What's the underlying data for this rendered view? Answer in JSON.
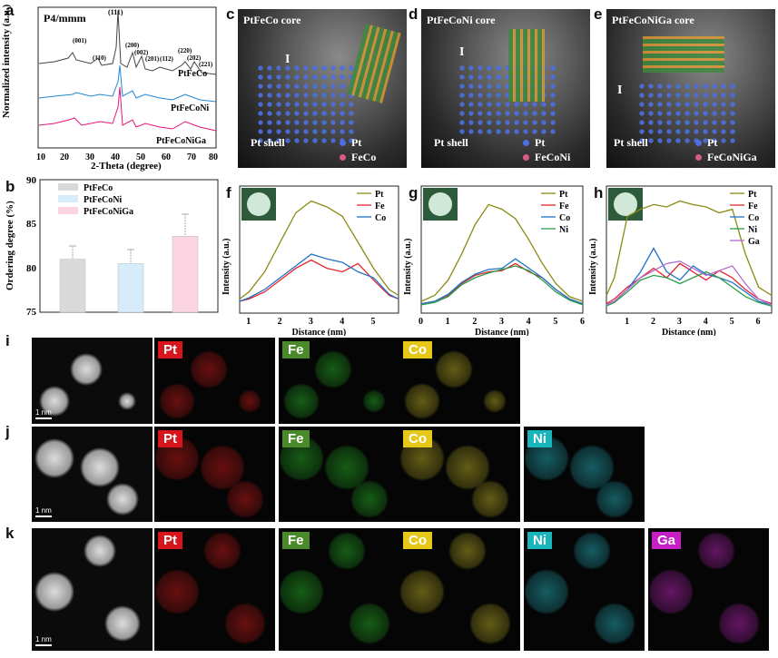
{
  "panel_letters": {
    "a": "a",
    "b": "b",
    "c": "c",
    "d": "d",
    "e": "e",
    "f": "f",
    "g": "g",
    "h": "h",
    "i": "i",
    "j": "j",
    "k": "k"
  },
  "xrd": {
    "space_group": "P4/mmm",
    "peaks": [
      "(001)",
      "(110)",
      "(111)",
      "(200)",
      "(002)",
      "(201)",
      "(112)",
      "(220)",
      "(202)",
      "(221)"
    ],
    "samples": [
      "PtFeCo",
      "PtFeCoNi",
      "PtFeCoNiGa"
    ],
    "xlabel": "2-Theta (degree)",
    "ylabel": "Normalized intensity (a.u.)",
    "x_ticks": [
      "10",
      "20",
      "30",
      "40",
      "50",
      "60",
      "70",
      "80"
    ]
  },
  "chart_data": [
    {
      "type": "bar",
      "title": "",
      "categories": [
        "PtFeCo",
        "PtFeCoNi",
        "PtFeCoNiGa"
      ],
      "values": [
        81.0,
        80.5,
        83.6
      ],
      "errors": [
        1.5,
        1.6,
        2.5
      ],
      "ylabel": "Ordering degree (%)",
      "ylim": [
        75,
        90
      ],
      "yticks": [
        "75",
        "80",
        "85",
        "90"
      ],
      "colors": [
        "#d9d9d9",
        "#d6ecfa",
        "#fbd5e1"
      ],
      "legend": "top-left"
    },
    {
      "type": "line",
      "title": "",
      "xlabel": "Distance (nm)",
      "ylabel": "Intensity (a.u.)",
      "xlim": [
        0.7,
        5.8
      ],
      "xticks": [
        "1",
        "2",
        "3",
        "4",
        "5"
      ],
      "series": [
        {
          "name": "Pt",
          "color": "#8b8a13",
          "x": [
            0.7,
            1.0,
            1.5,
            2.0,
            2.5,
            3.0,
            3.5,
            4.0,
            4.5,
            5.0,
            5.5,
            5.8
          ],
          "y": [
            0.12,
            0.18,
            0.35,
            0.6,
            0.85,
            0.95,
            0.9,
            0.82,
            0.6,
            0.38,
            0.2,
            0.15
          ]
        },
        {
          "name": "Fe",
          "color": "#e3262c",
          "x": [
            0.7,
            1.0,
            1.5,
            2.0,
            2.5,
            3.0,
            3.5,
            4.0,
            4.5,
            5.0,
            5.5,
            5.8
          ],
          "y": [
            0.1,
            0.12,
            0.18,
            0.28,
            0.38,
            0.45,
            0.38,
            0.35,
            0.42,
            0.28,
            0.15,
            0.12
          ]
        },
        {
          "name": "Co",
          "color": "#1f74c7",
          "x": [
            0.7,
            1.0,
            1.5,
            2.0,
            2.5,
            3.0,
            3.5,
            4.0,
            4.5,
            5.0,
            5.5,
            5.8
          ],
          "y": [
            0.1,
            0.13,
            0.2,
            0.3,
            0.4,
            0.5,
            0.46,
            0.43,
            0.35,
            0.3,
            0.16,
            0.12
          ]
        }
      ]
    },
    {
      "type": "line",
      "title": "",
      "xlabel": "Distance (nm)",
      "ylabel": "Intensity (a.u.)",
      "xlim": [
        0,
        6
      ],
      "xticks": [
        "0",
        "1",
        "2",
        "3",
        "4",
        "5",
        "6"
      ],
      "series": [
        {
          "name": "Pt",
          "color": "#8b8a13",
          "x": [
            0,
            0.5,
            1.0,
            1.5,
            2.0,
            2.5,
            3.0,
            3.5,
            4.0,
            4.5,
            5.0,
            5.5,
            6.0
          ],
          "y": [
            0.1,
            0.15,
            0.28,
            0.5,
            0.75,
            0.92,
            0.88,
            0.8,
            0.62,
            0.42,
            0.25,
            0.14,
            0.1
          ]
        },
        {
          "name": "Fe",
          "color": "#e3262c",
          "x": [
            0,
            0.5,
            1.0,
            1.5,
            2.0,
            2.5,
            3.0,
            3.5,
            4.0,
            4.5,
            5.0,
            5.5,
            6.0
          ],
          "y": [
            0.08,
            0.1,
            0.15,
            0.25,
            0.32,
            0.35,
            0.36,
            0.42,
            0.35,
            0.3,
            0.2,
            0.12,
            0.08
          ]
        },
        {
          "name": "Co",
          "color": "#1f74c7",
          "x": [
            0,
            0.5,
            1.0,
            1.5,
            2.0,
            2.5,
            3.0,
            3.5,
            4.0,
            4.5,
            5.0,
            5.5,
            6.0
          ],
          "y": [
            0.08,
            0.1,
            0.16,
            0.26,
            0.33,
            0.37,
            0.38,
            0.46,
            0.38,
            0.3,
            0.2,
            0.12,
            0.08
          ]
        },
        {
          "name": "Ni",
          "color": "#2a9d4a",
          "x": [
            0,
            0.5,
            1.0,
            1.5,
            2.0,
            2.5,
            3.0,
            3.5,
            4.0,
            4.5,
            5.0,
            5.5,
            6.0
          ],
          "y": [
            0.07,
            0.09,
            0.14,
            0.24,
            0.3,
            0.34,
            0.37,
            0.4,
            0.36,
            0.28,
            0.18,
            0.11,
            0.07
          ]
        }
      ]
    },
    {
      "type": "line",
      "title": "",
      "xlabel": "Distance (nm)",
      "ylabel": "Intensity (a.u.)",
      "xlim": [
        0.2,
        6.5
      ],
      "xticks": [
        "1",
        "2",
        "3",
        "4",
        "5",
        "6"
      ],
      "series": [
        {
          "name": "Pt",
          "color": "#8b8a13",
          "x": [
            0.2,
            0.5,
            1.0,
            1.5,
            2.0,
            2.5,
            3.0,
            3.5,
            4.0,
            4.5,
            5.0,
            5.5,
            6.0,
            6.5
          ],
          "y": [
            0.15,
            0.3,
            0.82,
            0.88,
            0.92,
            0.9,
            0.95,
            0.92,
            0.9,
            0.85,
            0.88,
            0.5,
            0.22,
            0.15
          ]
        },
        {
          "name": "Fe",
          "color": "#e3262c",
          "x": [
            0.2,
            0.5,
            1.0,
            1.5,
            2.0,
            2.5,
            3.0,
            3.5,
            4.0,
            4.5,
            5.0,
            5.5,
            6.0,
            6.5
          ],
          "y": [
            0.08,
            0.12,
            0.22,
            0.3,
            0.38,
            0.3,
            0.42,
            0.35,
            0.28,
            0.36,
            0.3,
            0.2,
            0.12,
            0.08
          ]
        },
        {
          "name": "Co",
          "color": "#1f74c7",
          "x": [
            0.2,
            0.5,
            1.0,
            1.5,
            2.0,
            2.5,
            3.0,
            3.5,
            4.0,
            4.5,
            5.0,
            5.5,
            6.0,
            6.5
          ],
          "y": [
            0.07,
            0.1,
            0.2,
            0.35,
            0.55,
            0.35,
            0.28,
            0.4,
            0.33,
            0.3,
            0.26,
            0.18,
            0.1,
            0.07
          ]
        },
        {
          "name": "Ni",
          "color": "#2a9d4a",
          "x": [
            0.2,
            0.5,
            1.0,
            1.5,
            2.0,
            2.5,
            3.0,
            3.5,
            4.0,
            4.5,
            5.0,
            5.5,
            6.0,
            6.5
          ],
          "y": [
            0.06,
            0.09,
            0.18,
            0.28,
            0.32,
            0.3,
            0.25,
            0.3,
            0.35,
            0.3,
            0.22,
            0.14,
            0.09,
            0.06
          ]
        },
        {
          "name": "Ga",
          "color": "#b46ad0",
          "x": [
            0.2,
            0.5,
            1.0,
            1.5,
            2.0,
            2.5,
            3.0,
            3.5,
            4.0,
            4.5,
            5.0,
            5.5,
            6.0,
            6.5
          ],
          "y": [
            0.07,
            0.1,
            0.2,
            0.3,
            0.36,
            0.42,
            0.44,
            0.38,
            0.32,
            0.36,
            0.4,
            0.25,
            0.12,
            0.07
          ]
        }
      ]
    }
  ],
  "stem": [
    {
      "title": "PtFeCo core",
      "shell": "Pt shell",
      "legend": [
        "Pt",
        "FeCo"
      ],
      "roman": "I"
    },
    {
      "title": "PtFeCoNi core",
      "shell": "Pt shell",
      "legend": [
        "Pt",
        "FeCoNi"
      ],
      "roman": "I"
    },
    {
      "title": "PtFeCoNiGa core",
      "shell": "Pt shell",
      "legend": [
        "Pt",
        "FeCoNiGa"
      ],
      "roman": "I"
    }
  ],
  "eds": {
    "scale": "1 nm",
    "rows": [
      {
        "elements": [
          "Pt",
          "Fe",
          "Co"
        ]
      },
      {
        "elements": [
          "Pt",
          "Fe",
          "Co",
          "Ni"
        ]
      },
      {
        "elements": [
          "Pt",
          "Fe",
          "Co",
          "Ni",
          "Ga"
        ]
      }
    ],
    "element_colors": {
      "Pt": "#d6161c",
      "Fe": "#4a8a2a",
      "Co": "#e6c818",
      "Ni": "#19b5bd",
      "Ga": "#c61fc6"
    },
    "dot_colors": {
      "Pt": "#ff2020",
      "Fe": "#30e030",
      "Co": "#f0e030",
      "Ni": "#30e0f0",
      "Ga": "#f030f0"
    }
  }
}
